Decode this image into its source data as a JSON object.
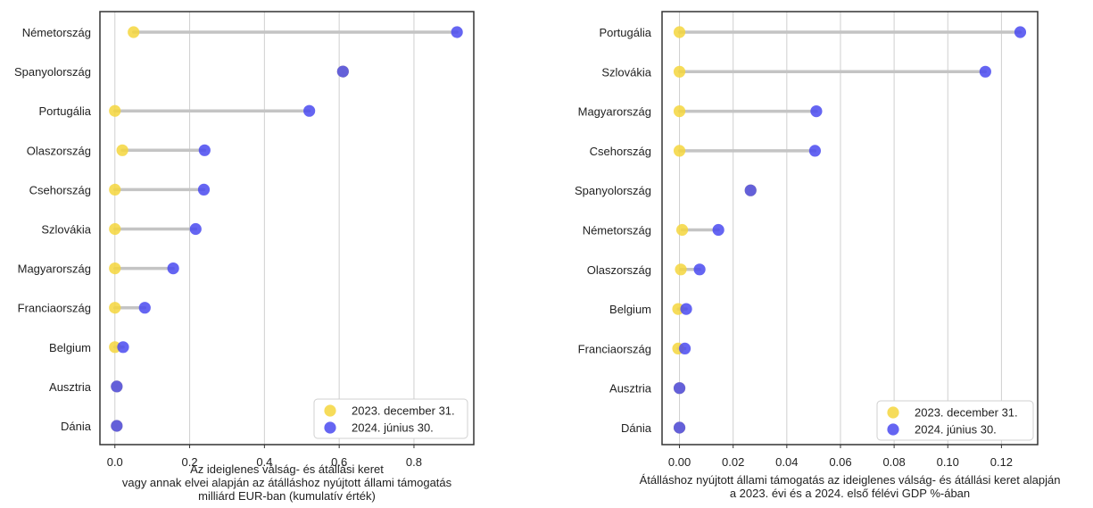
{
  "chart_data": [
    {
      "type": "dumbbell",
      "orientation": "horizontal",
      "categories": [
        "Németország",
        "Spanyolország",
        "Portugália",
        "Olaszország",
        "Csehország",
        "Szlovákia",
        "Magyarország",
        "Franciaország",
        "Belgium",
        "Ausztria",
        "Dánia"
      ],
      "series": [
        {
          "name": "2023. december 31.",
          "color": "#f5d63d",
          "values": [
            0.05,
            0.61,
            0.0,
            0.02,
            0.0,
            0.0,
            0.0,
            0.0,
            0.0,
            0.005,
            0.005
          ]
        },
        {
          "name": "2024. június 30.",
          "color": "#4a4af0",
          "values": [
            0.915,
            0.61,
            0.52,
            0.24,
            0.238,
            0.216,
            0.156,
            0.08,
            0.022,
            0.005,
            0.005
          ]
        }
      ],
      "xlabel": [
        "Az ideiglenes válság- és átállási keret",
        "vagy annak elvei alapján az átálláshoz nyújtott állami támogatás",
        "milliárd EUR-ban (kumulatív érték)"
      ],
      "xticks": [
        0.0,
        0.2,
        0.4,
        0.6,
        0.8
      ],
      "xtick_labels": [
        "0.0",
        "0.2",
        "0.4",
        "0.6",
        "0.8"
      ],
      "xlim": [
        -0.04,
        0.96
      ],
      "grid": "vertical",
      "legend_position": "bottom-right"
    },
    {
      "type": "dumbbell",
      "orientation": "horizontal",
      "categories": [
        "Portugália",
        "Szlovákia",
        "Magyarország",
        "Csehország",
        "Spanyolország",
        "Németország",
        "Olaszország",
        "Belgium",
        "Franciaország",
        "Ausztria",
        "Dánia"
      ],
      "series": [
        {
          "name": "2023. december 31.",
          "color": "#f5d63d",
          "values": [
            0.0,
            0.0,
            0.0,
            0.0,
            0.0265,
            0.001,
            0.0005,
            -0.0005,
            -0.0005,
            0.0,
            0.0
          ]
        },
        {
          "name": "2024. június 30.",
          "color": "#4a4af0",
          "values": [
            0.127,
            0.114,
            0.051,
            0.0505,
            0.0265,
            0.0145,
            0.0075,
            0.0025,
            0.002,
            0.0,
            0.0
          ]
        }
      ],
      "xlabel": [
        "Átálláshoz nyújtott állami támogatás az ideiglenes válság- és átállási keret alapján",
        "a 2023. évi és a 2024. első félévi GDP %-ában"
      ],
      "xticks": [
        0.0,
        0.02,
        0.04,
        0.06,
        0.08,
        0.1,
        0.12
      ],
      "xtick_labels": [
        "0.00",
        "0.02",
        "0.04",
        "0.06",
        "0.08",
        "0.10",
        "0.12"
      ],
      "xlim": [
        -0.0065,
        0.1335
      ],
      "grid": "vertical",
      "legend_position": "bottom-right"
    }
  ]
}
